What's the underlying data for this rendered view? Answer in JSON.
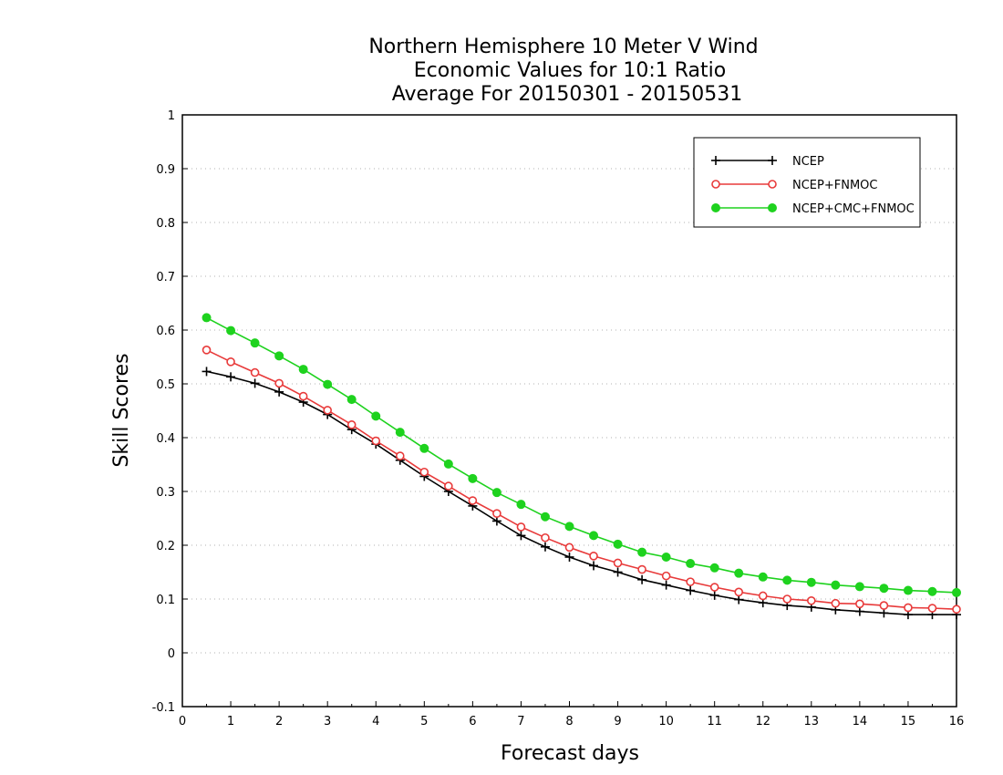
{
  "chart_data": {
    "type": "line",
    "title": [
      "Northern Hemisphere 10 Meter V Wind",
      "Economic Values for 10:1 Ratio",
      "Average For 20150301 - 20150531"
    ],
    "xlabel": "Forecast days",
    "ylabel": "Skill Scores",
    "xlim": [
      0,
      16
    ],
    "ylim": [
      -0.1,
      1
    ],
    "xticks": [
      0,
      1,
      2,
      3,
      4,
      5,
      6,
      7,
      8,
      9,
      10,
      11,
      12,
      13,
      14,
      15,
      16
    ],
    "yticks": [
      -0.1,
      0,
      0.1,
      0.2,
      0.3,
      0.4,
      0.5,
      0.6,
      0.7,
      0.8,
      0.9,
      1
    ],
    "ytick_labels": [
      "-0.1",
      "0",
      "0.1",
      "0.2",
      "0.3",
      "0.4",
      "0.5",
      "0.6",
      "0.7",
      "0.8",
      "0.9",
      "1"
    ],
    "grid": "horizontal dotted",
    "legend_position": "top-right",
    "x": [
      0.5,
      1,
      1.5,
      2,
      2.5,
      3,
      3.5,
      4,
      4.5,
      5,
      5.5,
      6,
      6.5,
      7,
      7.5,
      8,
      8.5,
      9,
      9.5,
      10,
      10.5,
      11,
      11.5,
      12,
      12.5,
      13,
      13.5,
      14,
      14.5,
      15,
      15.5,
      16
    ],
    "series": [
      {
        "name": "NCEP",
        "color": "#000000",
        "marker": "plus",
        "values": [
          0.523,
          0.513,
          0.501,
          0.485,
          0.466,
          0.443,
          0.415,
          0.388,
          0.358,
          0.328,
          0.3,
          0.273,
          0.245,
          0.218,
          0.197,
          0.178,
          0.162,
          0.15,
          0.136,
          0.126,
          0.116,
          0.107,
          0.099,
          0.093,
          0.088,
          0.085,
          0.08,
          0.077,
          0.074,
          0.071,
          0.071,
          0.071
        ]
      },
      {
        "name": "NCEP+FNMOC",
        "color": "#e83a3a",
        "marker": "open-circle",
        "values": [
          0.563,
          0.541,
          0.521,
          0.501,
          0.477,
          0.451,
          0.424,
          0.394,
          0.366,
          0.336,
          0.31,
          0.283,
          0.259,
          0.234,
          0.214,
          0.196,
          0.18,
          0.167,
          0.155,
          0.143,
          0.132,
          0.122,
          0.113,
          0.106,
          0.1,
          0.097,
          0.092,
          0.091,
          0.088,
          0.084,
          0.083,
          0.081
        ]
      },
      {
        "name": "NCEP+CMC+FNMOC",
        "color": "#1ed21e",
        "marker": "filled-circle",
        "values": [
          0.623,
          0.599,
          0.576,
          0.552,
          0.527,
          0.499,
          0.471,
          0.44,
          0.41,
          0.38,
          0.351,
          0.324,
          0.298,
          0.276,
          0.253,
          0.235,
          0.218,
          0.202,
          0.187,
          0.178,
          0.166,
          0.158,
          0.148,
          0.141,
          0.135,
          0.131,
          0.126,
          0.123,
          0.12,
          0.116,
          0.114,
          0.112
        ]
      }
    ]
  }
}
